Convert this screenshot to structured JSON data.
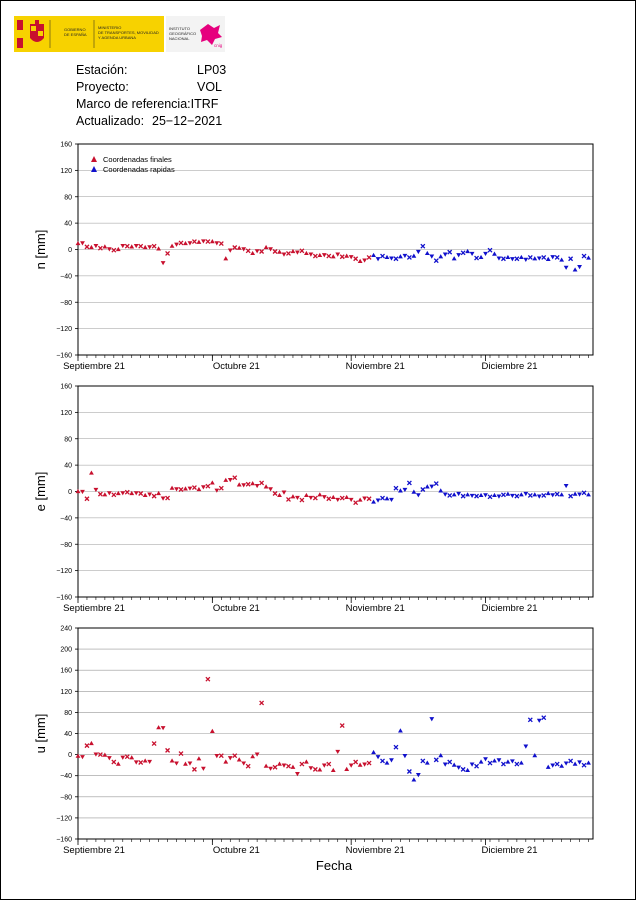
{
  "header": {
    "logo1_text": [
      "GOBIERNO",
      "DE ESPAÑA"
    ],
    "logo2_text": [
      "MINISTERIO",
      "DE TRANSPORTES, MOVILIDAD",
      "Y AGENDA URBANA"
    ],
    "logo3_text": [
      "INSTITUTO",
      "GEOGRÁFICO",
      "NACIONAL"
    ],
    "logo4_text": "cnig",
    "colors": {
      "logo_yellow": "#f7d200",
      "logo_red": "#c8102e",
      "cnig_magenta": "#e6007e"
    }
  },
  "info": {
    "station_label": "Estación:",
    "station_value": "LP03",
    "project_label": "Proyecto:",
    "project_value": "VOL",
    "frame_label": "Marco de referencia:",
    "frame_value": "ITRF",
    "updated_label": "Actualizado:",
    "updated_value": "25−12−2021"
  },
  "legend": {
    "final_label": "Coordenadas finales",
    "rapid_label": "Coordenadas rapidas",
    "final_color": "#c8102e",
    "rapid_color": "#1010cc"
  },
  "xlabel": "Fecha",
  "chart_data": [
    {
      "type": "scatter",
      "ylabel": "n [mm]",
      "ylim": [
        -160,
        160
      ],
      "yticks": [
        -160,
        -120,
        -80,
        -40,
        0,
        40,
        80,
        120,
        160
      ],
      "xlim": [
        "2021-09-01",
        "2021-12-25"
      ],
      "xtick_labels": [
        "Septiembre 21",
        "Octubre 21",
        "Noviembre 21",
        "Diciembre 21"
      ],
      "xtick_dates": [
        "2021-09-01",
        "2021-10-01",
        "2021-11-01",
        "2021-12-01"
      ],
      "grid": true,
      "series": [
        {
          "name": "Coordenadas finales",
          "x": [
            "2021-09-01",
            "2021-09-02",
            "2021-09-03",
            "2021-09-04",
            "2021-09-05",
            "2021-09-06",
            "2021-09-07",
            "2021-09-08",
            "2021-09-09",
            "2021-09-10",
            "2021-09-11",
            "2021-09-12",
            "2021-09-13",
            "2021-09-14",
            "2021-09-15",
            "2021-09-16",
            "2021-09-17",
            "2021-09-18",
            "2021-09-19",
            "2021-09-20",
            "2021-09-21",
            "2021-09-22",
            "2021-09-23",
            "2021-09-24",
            "2021-09-25",
            "2021-09-26",
            "2021-09-27",
            "2021-09-28",
            "2021-09-29",
            "2021-09-30",
            "2021-10-01",
            "2021-10-02",
            "2021-10-03",
            "2021-10-04",
            "2021-10-05",
            "2021-10-06",
            "2021-10-07",
            "2021-10-08",
            "2021-10-09",
            "2021-10-10",
            "2021-10-11",
            "2021-10-12",
            "2021-10-13",
            "2021-10-14",
            "2021-10-15",
            "2021-10-16",
            "2021-10-17",
            "2021-10-18",
            "2021-10-19",
            "2021-10-20",
            "2021-10-21",
            "2021-10-22",
            "2021-10-23",
            "2021-10-24",
            "2021-10-25",
            "2021-10-26",
            "2021-10-27",
            "2021-10-28",
            "2021-10-29",
            "2021-10-30",
            "2021-10-31",
            "2021-11-01",
            "2021-11-02",
            "2021-11-03",
            "2021-11-04",
            "2021-11-05"
          ],
          "y": [
            9,
            10,
            4,
            3,
            6,
            2,
            4,
            1,
            -1,
            0,
            6,
            5,
            4,
            6,
            5,
            3,
            4,
            5,
            1,
            -20,
            -6,
            5,
            8,
            10,
            9,
            10,
            12,
            11,
            13,
            12,
            12,
            10,
            9,
            -14,
            -1,
            3,
            2,
            1,
            -2,
            -6,
            -2,
            -3,
            3,
            1,
            -3,
            -4,
            -7,
            -6,
            -3,
            -4,
            -2,
            -6,
            -7,
            -10,
            -9,
            -8,
            -10,
            -11,
            -7,
            -11,
            -10,
            -11,
            -14,
            -18,
            -16,
            -12
          ]
        },
        {
          "name": "Coordenadas rapidas",
          "x": [
            "2021-11-06",
            "2021-11-07",
            "2021-11-08",
            "2021-11-09",
            "2021-11-10",
            "2021-11-11",
            "2021-11-12",
            "2021-11-13",
            "2021-11-14",
            "2021-11-15",
            "2021-11-16",
            "2021-11-17",
            "2021-11-18",
            "2021-11-19",
            "2021-11-20",
            "2021-11-21",
            "2021-11-22",
            "2021-11-23",
            "2021-11-24",
            "2021-11-25",
            "2021-11-26",
            "2021-11-27",
            "2021-11-28",
            "2021-11-29",
            "2021-11-30",
            "2021-12-01",
            "2021-12-02",
            "2021-12-03",
            "2021-12-04",
            "2021-12-05",
            "2021-12-06",
            "2021-12-07",
            "2021-12-08",
            "2021-12-09",
            "2021-12-10",
            "2021-12-11",
            "2021-12-12",
            "2021-12-13",
            "2021-12-14",
            "2021-12-15",
            "2021-12-16",
            "2021-12-17",
            "2021-12-18",
            "2021-12-19",
            "2021-12-20",
            "2021-12-21",
            "2021-12-22",
            "2021-12-23",
            "2021-12-24"
          ],
          "y": [
            -9,
            -14,
            -10,
            -12,
            -13,
            -14,
            -11,
            -9,
            -12,
            -10,
            -3,
            5,
            -6,
            -10,
            -17,
            -11,
            -7,
            -4,
            -14,
            -8,
            -5,
            -3,
            -6,
            -13,
            -12,
            -6,
            -1,
            -7,
            -13,
            -14,
            -12,
            -14,
            -14,
            -12,
            -15,
            -12,
            -14,
            -13,
            -12,
            -15,
            -11,
            -12,
            -16,
            -27,
            -14,
            -31,
            -26,
            -10,
            -13
          ]
        }
      ]
    },
    {
      "type": "scatter",
      "ylabel": "e [mm]",
      "ylim": [
        -160,
        160
      ],
      "yticks": [
        -160,
        -120,
        -80,
        -40,
        0,
        40,
        80,
        120,
        160
      ],
      "xlim": [
        "2021-09-01",
        "2021-12-25"
      ],
      "xtick_labels": [
        "Septiembre 21",
        "Octubre 21",
        "Noviembre 21",
        "Diciembre 21"
      ],
      "xtick_dates": [
        "2021-09-01",
        "2021-10-01",
        "2021-11-01",
        "2021-12-01"
      ],
      "grid": true,
      "series": [
        {
          "name": "Coordenadas finales",
          "x": [
            "2021-09-01",
            "2021-09-02",
            "2021-09-03",
            "2021-09-04",
            "2021-09-05",
            "2021-09-06",
            "2021-09-07",
            "2021-09-08",
            "2021-09-09",
            "2021-09-10",
            "2021-09-11",
            "2021-09-12",
            "2021-09-13",
            "2021-09-14",
            "2021-09-15",
            "2021-09-16",
            "2021-09-17",
            "2021-09-18",
            "2021-09-19",
            "2021-09-20",
            "2021-09-21",
            "2021-09-22",
            "2021-09-23",
            "2021-09-24",
            "2021-09-25",
            "2021-09-26",
            "2021-09-27",
            "2021-09-28",
            "2021-09-29",
            "2021-09-30",
            "2021-10-01",
            "2021-10-02",
            "2021-10-03",
            "2021-10-04",
            "2021-10-05",
            "2021-10-06",
            "2021-10-07",
            "2021-10-08",
            "2021-10-09",
            "2021-10-10",
            "2021-10-11",
            "2021-10-12",
            "2021-10-13",
            "2021-10-14",
            "2021-10-15",
            "2021-10-16",
            "2021-10-17",
            "2021-10-18",
            "2021-10-19",
            "2021-10-20",
            "2021-10-21",
            "2021-10-22",
            "2021-10-23",
            "2021-10-24",
            "2021-10-25",
            "2021-10-26",
            "2021-10-27",
            "2021-10-28",
            "2021-10-29",
            "2021-10-30",
            "2021-10-31",
            "2021-11-01",
            "2021-11-02",
            "2021-11-03",
            "2021-11-04",
            "2021-11-05"
          ],
          "y": [
            0,
            0,
            -11,
            28,
            3,
            -4,
            -5,
            -2,
            -5,
            -3,
            -2,
            -1,
            -3,
            -2,
            -3,
            -6,
            -4,
            -7,
            -3,
            -10,
            -10,
            5,
            4,
            3,
            4,
            5,
            6,
            3,
            7,
            8,
            13,
            2,
            5,
            17,
            18,
            21,
            10,
            10,
            11,
            12,
            9,
            13,
            7,
            4,
            -3,
            -6,
            -1,
            -12,
            -8,
            -9,
            -13,
            -6,
            -9,
            -10,
            -5,
            -8,
            -11,
            -9,
            -12,
            -10,
            -9,
            -12,
            -17,
            -13,
            -10,
            -11
          ]
        },
        {
          "name": "Coordenadas rapidas",
          "x": [
            "2021-11-06",
            "2021-11-07",
            "2021-11-08",
            "2021-11-09",
            "2021-11-10",
            "2021-11-11",
            "2021-11-12",
            "2021-11-13",
            "2021-11-14",
            "2021-11-15",
            "2021-11-16",
            "2021-11-17",
            "2021-11-18",
            "2021-11-19",
            "2021-11-20",
            "2021-11-21",
            "2021-11-22",
            "2021-11-23",
            "2021-11-24",
            "2021-11-25",
            "2021-11-26",
            "2021-11-27",
            "2021-11-28",
            "2021-11-29",
            "2021-11-30",
            "2021-12-01",
            "2021-12-02",
            "2021-12-03",
            "2021-12-04",
            "2021-12-05",
            "2021-12-06",
            "2021-12-07",
            "2021-12-08",
            "2021-12-09",
            "2021-12-10",
            "2021-12-11",
            "2021-12-12",
            "2021-12-13",
            "2021-12-14",
            "2021-12-15",
            "2021-12-16",
            "2021-12-17",
            "2021-12-18",
            "2021-12-19",
            "2021-12-20",
            "2021-12-21",
            "2021-12-22",
            "2021-12-23",
            "2021-12-24"
          ],
          "y": [
            -16,
            -13,
            -10,
            -11,
            -12,
            5,
            1,
            3,
            13,
            -1,
            -5,
            3,
            7,
            8,
            12,
            1,
            -4,
            -6,
            -5,
            -3,
            -7,
            -5,
            -6,
            -7,
            -6,
            -5,
            -8,
            -6,
            -7,
            -5,
            -4,
            -6,
            -7,
            -5,
            -3,
            -6,
            -5,
            -7,
            -6,
            -3,
            -5,
            -4,
            -5,
            9,
            -7,
            -4,
            -4,
            -2,
            -5
          ]
        }
      ]
    },
    {
      "type": "scatter",
      "ylabel": "u [mm]",
      "ylim": [
        -160,
        240
      ],
      "yticks": [
        -160,
        -120,
        -80,
        -40,
        0,
        40,
        80,
        120,
        160,
        200,
        240
      ],
      "xlim": [
        "2021-09-01",
        "2021-12-25"
      ],
      "xtick_labels": [
        "Septiembre 21",
        "Octubre 21",
        "Noviembre 21",
        "Diciembre 21"
      ],
      "xtick_dates": [
        "2021-09-01",
        "2021-10-01",
        "2021-11-01",
        "2021-12-01"
      ],
      "grid": true,
      "series": [
        {
          "name": "Coordenadas finales",
          "x": [
            "2021-09-01",
            "2021-09-02",
            "2021-09-03",
            "2021-09-04",
            "2021-09-05",
            "2021-09-06",
            "2021-09-07",
            "2021-09-08",
            "2021-09-09",
            "2021-09-10",
            "2021-09-11",
            "2021-09-12",
            "2021-09-13",
            "2021-09-14",
            "2021-09-15",
            "2021-09-16",
            "2021-09-17",
            "2021-09-18",
            "2021-09-19",
            "2021-09-20",
            "2021-09-21",
            "2021-09-22",
            "2021-09-23",
            "2021-09-24",
            "2021-09-25",
            "2021-09-26",
            "2021-09-27",
            "2021-09-28",
            "2021-09-29",
            "2021-09-30",
            "2021-10-01",
            "2021-10-02",
            "2021-10-03",
            "2021-10-04",
            "2021-10-05",
            "2021-10-06",
            "2021-10-07",
            "2021-10-08",
            "2021-10-09",
            "2021-10-10",
            "2021-10-11",
            "2021-10-12",
            "2021-10-13",
            "2021-10-14",
            "2021-10-15",
            "2021-10-16",
            "2021-10-17",
            "2021-10-18",
            "2021-10-19",
            "2021-10-20",
            "2021-10-21",
            "2021-10-22",
            "2021-10-23",
            "2021-10-24",
            "2021-10-25",
            "2021-10-26",
            "2021-10-27",
            "2021-10-28",
            "2021-10-29",
            "2021-10-30",
            "2021-10-31",
            "2021-11-01",
            "2021-11-02",
            "2021-11-03",
            "2021-11-04",
            "2021-11-05"
          ],
          "y": [
            -3,
            -4,
            17,
            21,
            1,
            0,
            -1,
            -6,
            -14,
            -18,
            -5,
            -4,
            -6,
            -14,
            -15,
            -12,
            -13,
            21,
            51,
            51,
            8,
            -12,
            -16,
            2,
            -18,
            -16,
            -28,
            -8,
            -26,
            143,
            44,
            -2,
            -2,
            -14,
            -6,
            -2,
            -10,
            -16,
            -22,
            -4,
            1,
            98,
            -22,
            -26,
            -24,
            -18,
            -20,
            -22,
            -24,
            -36,
            -18,
            -14,
            -25,
            -28,
            -29,
            -20,
            -18,
            -30,
            6,
            55,
            -28,
            -20,
            -14,
            -20,
            -18,
            -16
          ]
        },
        {
          "name": "Coordenadas rapidas",
          "x": [
            "2021-11-06",
            "2021-11-07",
            "2021-11-08",
            "2021-11-09",
            "2021-11-10",
            "2021-11-11",
            "2021-11-12",
            "2021-11-13",
            "2021-11-14",
            "2021-11-15",
            "2021-11-16",
            "2021-11-17",
            "2021-11-18",
            "2021-11-19",
            "2021-11-20",
            "2021-11-21",
            "2021-11-22",
            "2021-11-23",
            "2021-11-24",
            "2021-11-25",
            "2021-11-26",
            "2021-11-27",
            "2021-11-28",
            "2021-11-29",
            "2021-11-30",
            "2021-12-01",
            "2021-12-02",
            "2021-12-03",
            "2021-12-04",
            "2021-12-05",
            "2021-12-06",
            "2021-12-07",
            "2021-12-08",
            "2021-12-09",
            "2021-12-10",
            "2021-12-11",
            "2021-12-12",
            "2021-12-13",
            "2021-12-14",
            "2021-12-15",
            "2021-12-16",
            "2021-12-17",
            "2021-12-18",
            "2021-12-19",
            "2021-12-20",
            "2021-12-21",
            "2021-12-22",
            "2021-12-23",
            "2021-12-24"
          ],
          "y": [
            4,
            -4,
            -12,
            -16,
            -10,
            14,
            45,
            -2,
            -32,
            -48,
            -38,
            -12,
            -16,
            68,
            -10,
            -2,
            -18,
            -14,
            -20,
            -24,
            -28,
            -30,
            -18,
            -22,
            -14,
            -8,
            -16,
            -12,
            -10,
            -18,
            -14,
            -12,
            -18,
            -16,
            16,
            66,
            -2,
            65,
            70,
            -24,
            -20,
            -18,
            -22,
            -16,
            -12,
            -18,
            -14,
            -20,
            -16
          ]
        }
      ]
    }
  ]
}
